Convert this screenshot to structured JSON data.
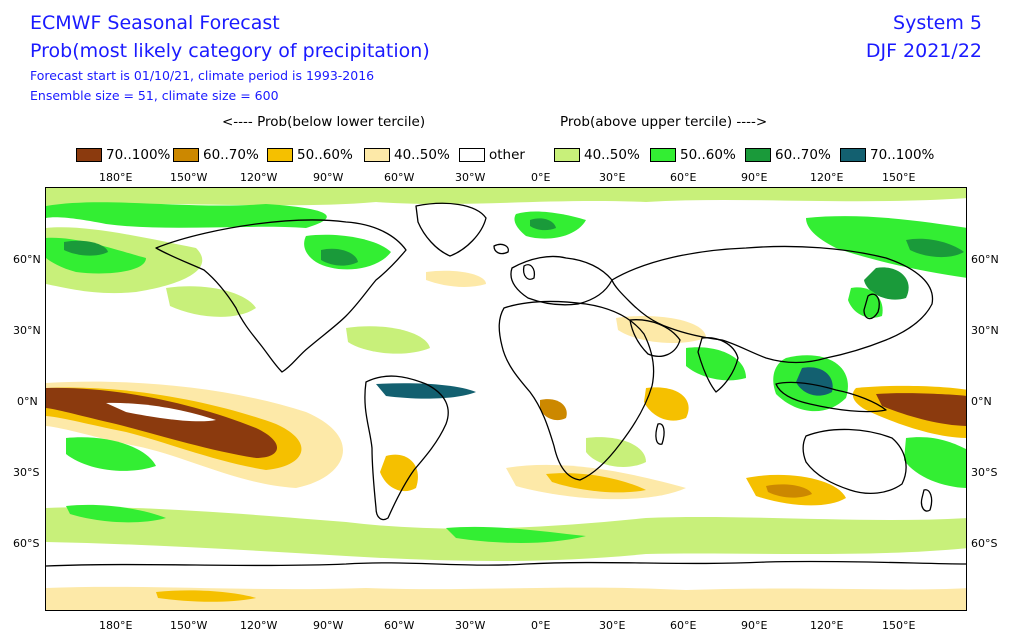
{
  "header": {
    "title": "ECMWF Seasonal Forecast",
    "product": "Prob(most likely category of precipitation)",
    "forecast_info": "Forecast start is 01/10/21, climate period is 1993-2016",
    "ensemble_info": "Ensemble size = 51, climate size = 600",
    "system": "System 5",
    "season": "DJF 2021/22"
  },
  "legend": {
    "below_header": "<---- Prob(below lower tercile)",
    "above_header": "Prob(above upper tercile) ---->",
    "items": [
      {
        "label": "70..100%",
        "color": "#8b3a0e"
      },
      {
        "label": "60..70%",
        "color": "#cc8800"
      },
      {
        "label": "50..60%",
        "color": "#f5c000"
      },
      {
        "label": "40..50%",
        "color": "#fde9a8"
      },
      {
        "label": "other",
        "color": "#ffffff"
      },
      {
        "label": "40..50%",
        "color": "#c8f07a"
      },
      {
        "label": "50..60%",
        "color": "#33ee33"
      },
      {
        "label": "60..70%",
        "color": "#1a9a3a"
      },
      {
        "label": "70..100%",
        "color": "#136070"
      }
    ]
  },
  "axes": {
    "lon_labels": [
      "180°E",
      "150°W",
      "120°W",
      "90°W",
      "60°W",
      "30°W",
      "0°E",
      "30°E",
      "60°E",
      "90°E",
      "120°E",
      "150°E"
    ],
    "lat_labels": [
      "60°N",
      "30°N",
      "0°N",
      "30°S",
      "60°S"
    ]
  }
}
